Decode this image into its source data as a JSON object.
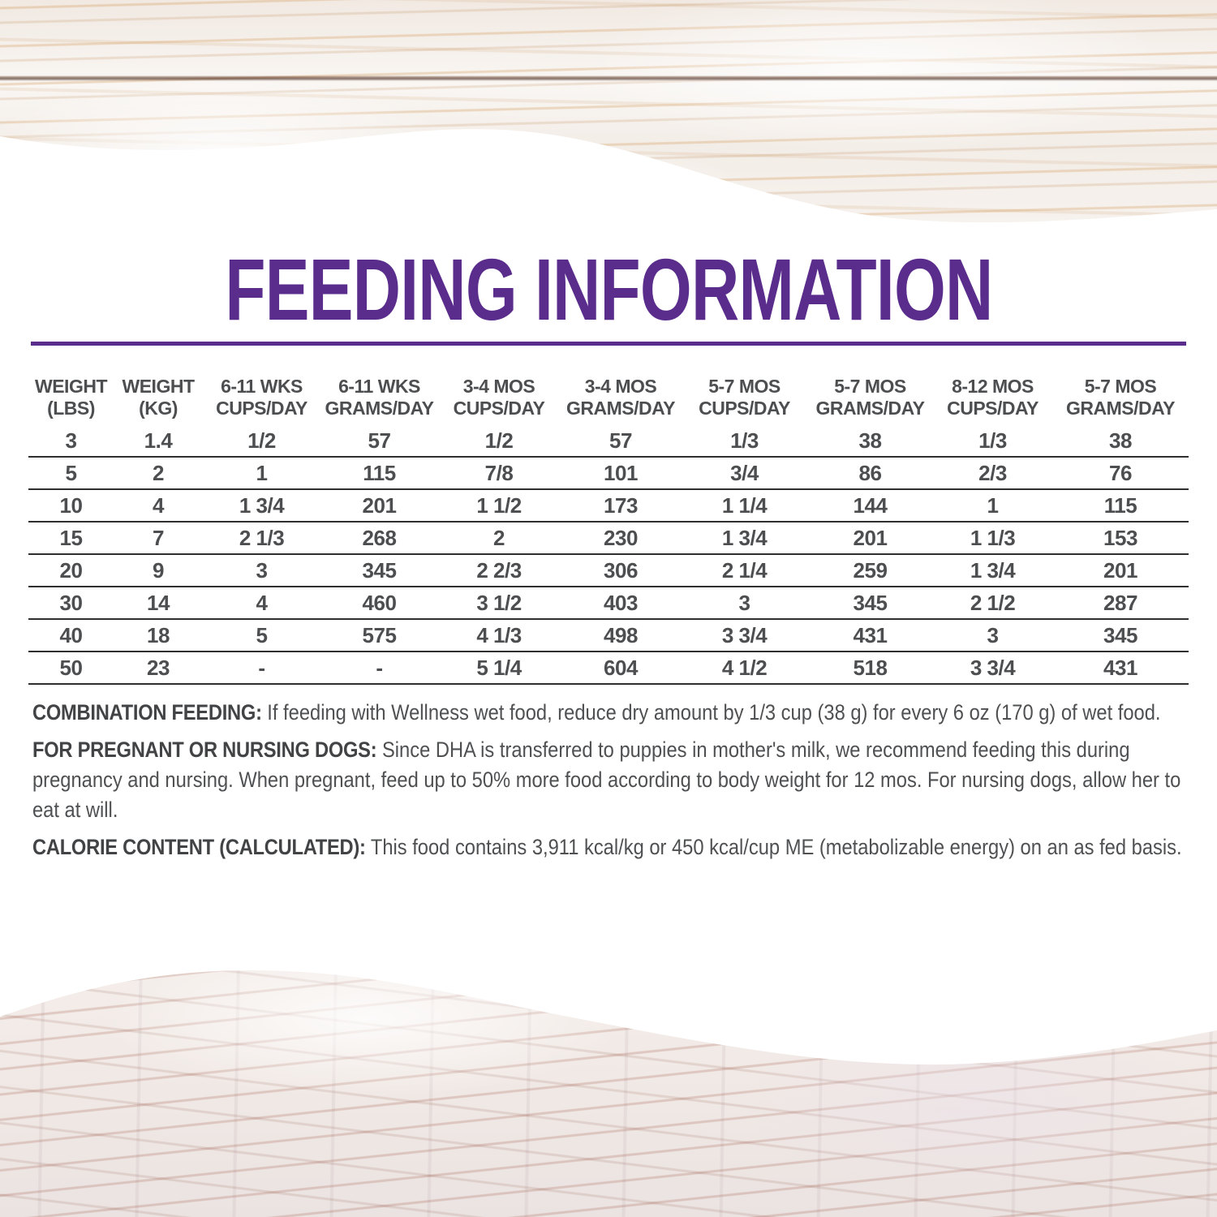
{
  "title": "FEEDING INFORMATION",
  "accent_color": "#5a2d8c",
  "text_color": "#4d4e50",
  "table": {
    "columns": [
      {
        "line1": "WEIGHT",
        "line2": "(LBS)"
      },
      {
        "line1": "WEIGHT",
        "line2": "(KG)"
      },
      {
        "line1": "6-11 WKS",
        "line2": "CUPS/DAY"
      },
      {
        "line1": "6-11 WKS",
        "line2": "GRAMS/DAY"
      },
      {
        "line1": "3-4 MOS",
        "line2": "CUPS/DAY"
      },
      {
        "line1": "3-4 MOS",
        "line2": "GRAMS/DAY"
      },
      {
        "line1": "5-7 MOS",
        "line2": "CUPS/DAY"
      },
      {
        "line1": "5-7 MOS",
        "line2": "GRAMS/DAY"
      },
      {
        "line1": "8-12 MOS",
        "line2": "CUPS/DAY"
      },
      {
        "line1": "5-7 MOS",
        "line2": "GRAMS/DAY"
      }
    ],
    "rows": [
      [
        "3",
        "1.4",
        "1/2",
        "57",
        "1/2",
        "57",
        "1/3",
        "38",
        "1/3",
        "38"
      ],
      [
        "5",
        "2",
        "1",
        "115",
        "7/8",
        "101",
        "3/4",
        "86",
        "2/3",
        "76"
      ],
      [
        "10",
        "4",
        "1 3/4",
        "201",
        "1 1/2",
        "173",
        "1 1/4",
        "144",
        "1",
        "115"
      ],
      [
        "15",
        "7",
        "2 1/3",
        "268",
        "2",
        "230",
        "1 3/4",
        "201",
        "1 1/3",
        "153"
      ],
      [
        "20",
        "9",
        "3",
        "345",
        "2 2/3",
        "306",
        "2 1/4",
        "259",
        "1 3/4",
        "201"
      ],
      [
        "30",
        "14",
        "4",
        "460",
        "3 1/2",
        "403",
        "3",
        "345",
        "2 1/2",
        "287"
      ],
      [
        "40",
        "18",
        "5",
        "575",
        "4 1/3",
        "498",
        "3 3/4",
        "431",
        "3",
        "345"
      ],
      [
        "50",
        "23",
        "-",
        "-",
        "5 1/4",
        "604",
        "4 1/2",
        "518",
        "3 3/4",
        "431"
      ]
    ]
  },
  "notes": [
    {
      "label": "COMBINATION FEEDING:",
      "text": "If feeding with Wellness wet food, reduce dry amount by 1/3 cup (38 g) for every 6 oz (170 g) of wet food."
    },
    {
      "label": "FOR PREGNANT OR NURSING DOGS:",
      "text": "Since DHA is transferred to puppies in mother's milk, we recommend feeding this during pregnancy and nursing. When pregnant, feed up to 50% more food according to body weight for 12 mos. For nursing dogs, allow her to eat at will."
    },
    {
      "label": "CALORIE CONTENT (CALCULATED):",
      "text": "This food contains 3,911 kcal/kg or 450 kcal/cup ME (metabolizable energy) on an as fed basis."
    }
  ]
}
